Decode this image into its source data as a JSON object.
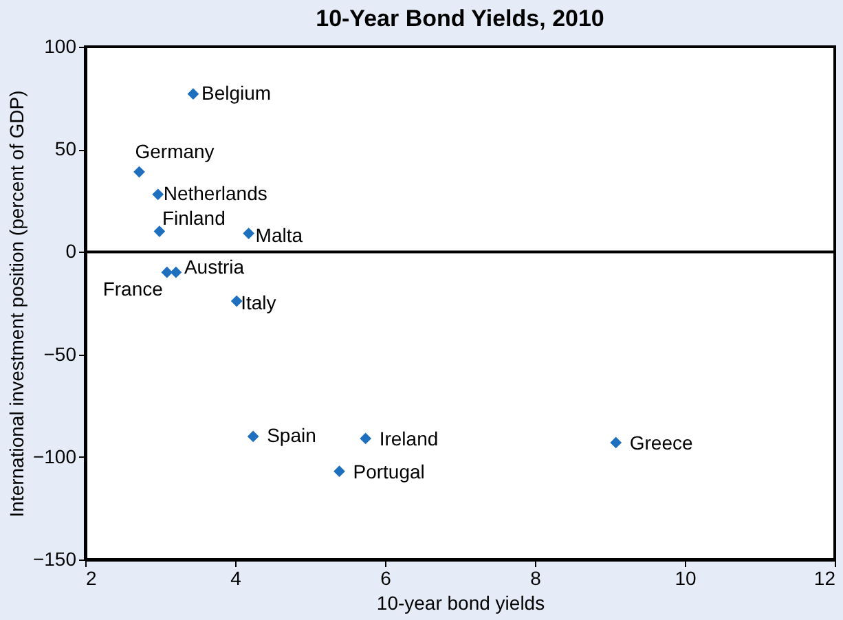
{
  "chart_data": {
    "type": "scatter",
    "title": "10-Year Bond Yields, 2010",
    "xlabel": "10-year bond yields",
    "ylabel": "International investment position (percent of GDP)",
    "x": [
      3.44,
      2.72,
      2.97,
      2.99,
      4.18,
      3.21,
      3.09,
      4.02,
      4.24,
      5.74,
      5.39,
      9.08
    ],
    "series": [
      {
        "color": "#1f6fbf",
        "values": [
          77,
          39,
          28,
          10,
          9,
          -10,
          -10,
          -24,
          -90,
          -91,
          -107,
          -93
        ]
      }
    ],
    "annotations": [
      {
        "text": "Belgium",
        "x": 3.44,
        "y": 77
      },
      {
        "text": "Germany",
        "x": 2.72,
        "y": 39
      },
      {
        "text": "Netherlands",
        "x": 2.97,
        "y": 28
      },
      {
        "text": "Finland",
        "x": 2.99,
        "y": 10
      },
      {
        "text": "Malta",
        "x": 4.18,
        "y": 9
      },
      {
        "text": "Austria",
        "x": 3.21,
        "y": -10
      },
      {
        "text": "France",
        "x": 3.09,
        "y": -10
      },
      {
        "text": "Italy",
        "x": 4.02,
        "y": -24
      },
      {
        "text": "Spain",
        "x": 4.24,
        "y": -90
      },
      {
        "text": "Ireland",
        "x": 5.74,
        "y": -91
      },
      {
        "text": "Portugal",
        "x": 5.39,
        "y": -107
      },
      {
        "text": "Greece",
        "x": 9.08,
        "y": -93
      }
    ],
    "ref_lines": [
      {
        "axis": "y",
        "value": 0,
        "color": "#000000"
      }
    ],
    "xlim": [
      2,
      12
    ],
    "xticks": [
      2,
      4,
      6,
      8,
      10,
      12
    ],
    "ylim": [
      -150,
      100
    ],
    "yticks": [
      -150,
      -100,
      -50,
      0,
      50,
      100
    ],
    "grid": false,
    "marker": "diamond"
  }
}
